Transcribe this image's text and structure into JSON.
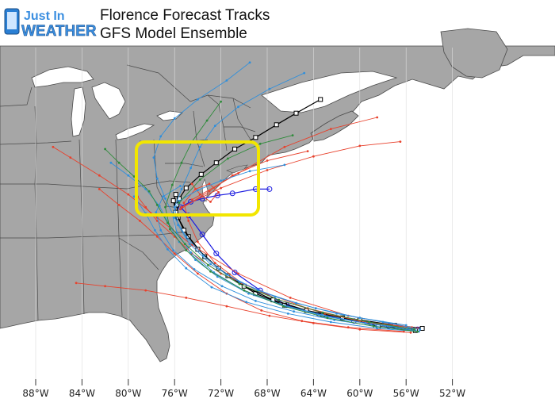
{
  "title": {
    "line1": "Florence Forecast Tracks",
    "line2": "GFS Model Ensemble"
  },
  "logo": {
    "line1": "Just In",
    "line2": "WEATHER"
  },
  "colors": {
    "ocean": "#ffffff",
    "land": "#a6a6a6",
    "border": "#4a4a4a",
    "highlight": "#f2e600",
    "tracks": [
      "#e8412c",
      "#2f8fdc",
      "#2e8b3a",
      "#000000",
      "#1c1ce0"
    ]
  },
  "longitude_labels": [
    "88°W",
    "84°W",
    "80°W",
    "76°W",
    "72°W",
    "68°W",
    "64°W",
    "60°W",
    "56°W",
    "52°W"
  ],
  "map_data": {
    "type": "hurricane-forecast-tracks",
    "storm": "Florence",
    "model": "GFS Model Ensemble",
    "highlight_region": "Mid-Atlantic",
    "tracks": [
      {
        "color": "#1c1ce0",
        "marker": "circle",
        "points": [
          [
            -55.0,
            25.2
          ],
          [
            -57.5,
            25.5
          ],
          [
            -60.5,
            26.0
          ],
          [
            -63.5,
            26.6
          ],
          [
            -66.3,
            27.5
          ],
          [
            -68.6,
            28.9
          ],
          [
            -70.8,
            30.6
          ],
          [
            -72.4,
            32.4
          ],
          [
            -73.6,
            34.2
          ],
          [
            -74.8,
            36.0
          ],
          [
            -75.5,
            36.8
          ],
          [
            -74.6,
            37.3
          ],
          [
            -73.6,
            37.6
          ],
          [
            -72.3,
            37.9
          ],
          [
            -71.0,
            38.1
          ],
          [
            -69.0,
            38.5
          ],
          [
            -67.8,
            38.5
          ]
        ]
      },
      {
        "color": "#000000",
        "marker": "square",
        "points": [
          [
            -54.6,
            25.3
          ],
          [
            -57.0,
            25.6
          ],
          [
            -60.0,
            26.1
          ],
          [
            -63.2,
            26.6
          ],
          [
            -66.5,
            27.5
          ],
          [
            -69.0,
            28.6
          ],
          [
            -71.4,
            30.3
          ],
          [
            -73.4,
            32.1
          ],
          [
            -74.8,
            34.0
          ],
          [
            -75.7,
            35.8
          ],
          [
            -75.8,
            37.0
          ],
          [
            -75.6,
            37.6
          ],
          [
            -75.0,
            38.6
          ],
          [
            -73.7,
            39.9
          ],
          [
            -72.4,
            41.0
          ],
          [
            -70.8,
            42.3
          ],
          [
            -69.0,
            43.4
          ],
          [
            -67.2,
            44.6
          ],
          [
            -65.5,
            45.7
          ],
          [
            -63.4,
            47.0
          ]
        ]
      },
      {
        "color": "#000000",
        "marker": "square",
        "points": [
          [
            -55.2,
            25.1
          ],
          [
            -58.4,
            25.5
          ],
          [
            -61.5,
            26.3
          ],
          [
            -64.6,
            27.0
          ],
          [
            -67.5,
            28.0
          ],
          [
            -70.0,
            29.3
          ],
          [
            -72.2,
            31.0
          ],
          [
            -74.0,
            32.8
          ],
          [
            -75.2,
            34.6
          ],
          [
            -75.9,
            36.3
          ],
          [
            -76.1,
            37.4
          ],
          [
            -75.9,
            38.0
          ]
        ]
      },
      {
        "color": "#e8412c",
        "marker": "dot",
        "points": [
          [
            -55.0,
            25.3
          ],
          [
            -59.0,
            25.8
          ],
          [
            -63.0,
            26.7
          ],
          [
            -67.0,
            28.0
          ],
          [
            -70.2,
            29.6
          ],
          [
            -72.5,
            31.5
          ],
          [
            -74.0,
            33.5
          ],
          [
            -74.8,
            35.5
          ],
          [
            -75.2,
            37.2
          ],
          [
            -74.2,
            38.5
          ],
          [
            -73.0,
            39.0
          ],
          [
            -72.2,
            38.2
          ],
          [
            -72.9,
            37.3
          ],
          [
            -73.8,
            38.0
          ],
          [
            -74.5,
            39.0
          ]
        ]
      },
      {
        "color": "#e8412c",
        "marker": "dot",
        "points": [
          [
            -55.5,
            25.4
          ],
          [
            -60.0,
            26.0
          ],
          [
            -64.5,
            27.2
          ],
          [
            -68.5,
            28.8
          ],
          [
            -72.0,
            30.5
          ],
          [
            -74.5,
            32.4
          ],
          [
            -76.0,
            34.0
          ],
          [
            -77.5,
            35.5
          ],
          [
            -78.5,
            36.8
          ],
          [
            -79.2,
            37.8
          ]
        ]
      },
      {
        "color": "#e8412c",
        "marker": "dot",
        "points": [
          [
            -56.0,
            25.5
          ],
          [
            -61.0,
            26.5
          ],
          [
            -66.0,
            28.2
          ],
          [
            -70.5,
            30.5
          ],
          [
            -74.5,
            33.2
          ],
          [
            -77.5,
            35.8
          ],
          [
            -80.0,
            38.0
          ],
          [
            -82.5,
            39.8
          ],
          [
            -85.0,
            41.5
          ],
          [
            -86.5,
            42.5
          ]
        ]
      },
      {
        "color": "#e8412c",
        "marker": "dot",
        "points": [
          [
            -56.2,
            25.0
          ],
          [
            -61.0,
            25.4
          ],
          [
            -65.0,
            26.0
          ],
          [
            -68.5,
            27.0
          ],
          [
            -71.5,
            28.6
          ],
          [
            -74.0,
            30.5
          ],
          [
            -76.0,
            32.4
          ],
          [
            -77.5,
            34.0
          ],
          [
            -79.0,
            35.5
          ],
          [
            -80.8,
            37.0
          ],
          [
            -82.5,
            38.5
          ]
        ]
      },
      {
        "color": "#e8412c",
        "marker": "dot",
        "points": [
          [
            -55.6,
            24.9
          ],
          [
            -60.0,
            25.2
          ],
          [
            -64.0,
            25.8
          ],
          [
            -67.8,
            26.5
          ],
          [
            -71.5,
            27.4
          ],
          [
            -75.0,
            28.2
          ],
          [
            -78.5,
            28.9
          ],
          [
            -82.0,
            29.3
          ],
          [
            -84.5,
            29.6
          ]
        ]
      },
      {
        "color": "#e8412c",
        "marker": "dot",
        "points": [
          [
            -75.4,
            36.8
          ],
          [
            -72.0,
            38.6
          ],
          [
            -68.0,
            40.3
          ],
          [
            -64.0,
            41.6
          ],
          [
            -60.0,
            42.6
          ],
          [
            -56.5,
            43.0
          ]
        ]
      },
      {
        "color": "#e8412c",
        "marker": "dot",
        "points": [
          [
            -74.5,
            37.5
          ],
          [
            -70.5,
            40.0
          ],
          [
            -66.5,
            42.5
          ],
          [
            -62.5,
            44.2
          ],
          [
            -58.5,
            45.3
          ]
        ]
      },
      {
        "color": "#e8412c",
        "marker": "dot",
        "points": [
          [
            -75.5,
            36.6
          ],
          [
            -73.0,
            38.3
          ],
          [
            -71.0,
            39.8
          ],
          [
            -68.0,
            41.2
          ],
          [
            -64.5,
            42.1
          ]
        ]
      },
      {
        "color": "#2f8fdc",
        "marker": "dot",
        "points": [
          [
            -54.8,
            25.2
          ],
          [
            -58.0,
            25.9
          ],
          [
            -62.0,
            26.7
          ],
          [
            -65.5,
            27.7
          ],
          [
            -68.8,
            28.9
          ],
          [
            -71.5,
            30.4
          ],
          [
            -73.5,
            32.2
          ],
          [
            -75.0,
            34.0
          ],
          [
            -76.0,
            35.8
          ],
          [
            -76.8,
            37.6
          ],
          [
            -77.5,
            39.5
          ],
          [
            -77.8,
            41.5
          ],
          [
            -77.2,
            43.5
          ],
          [
            -76.0,
            45.2
          ],
          [
            -74.0,
            47.0
          ],
          [
            -71.5,
            48.8
          ],
          [
            -69.5,
            50.5
          ]
        ]
      },
      {
        "color": "#2f8fdc",
        "marker": "dot",
        "points": [
          [
            -55.4,
            25.2
          ],
          [
            -59.0,
            25.7
          ],
          [
            -62.8,
            26.4
          ],
          [
            -66.4,
            27.4
          ],
          [
            -69.6,
            28.6
          ],
          [
            -72.3,
            30.2
          ],
          [
            -74.2,
            31.8
          ],
          [
            -75.6,
            33.5
          ],
          [
            -76.5,
            35.2
          ],
          [
            -77.3,
            36.9
          ],
          [
            -78.5,
            38.5
          ],
          [
            -80.0,
            39.8
          ],
          [
            -81.5,
            41.0
          ]
        ]
      },
      {
        "color": "#2f8fdc",
        "marker": "dot",
        "points": [
          [
            -54.9,
            25.0
          ],
          [
            -58.5,
            25.3
          ],
          [
            -62.5,
            25.9
          ],
          [
            -66.2,
            26.7
          ],
          [
            -69.8,
            27.8
          ],
          [
            -72.8,
            29.2
          ],
          [
            -75.0,
            31.0
          ],
          [
            -76.6,
            32.8
          ],
          [
            -77.7,
            34.6
          ],
          [
            -78.5,
            36.2
          ],
          [
            -79.5,
            37.8
          ]
        ]
      },
      {
        "color": "#2f8fdc",
        "marker": "dot",
        "points": [
          [
            -55.8,
            25.3
          ],
          [
            -59.5,
            25.8
          ],
          [
            -63.3,
            26.6
          ],
          [
            -66.9,
            27.6
          ],
          [
            -70.0,
            28.9
          ],
          [
            -72.6,
            30.6
          ],
          [
            -74.6,
            32.5
          ],
          [
            -75.8,
            34.4
          ],
          [
            -76.2,
            36.1
          ],
          [
            -75.6,
            37.4
          ],
          [
            -74.0,
            38.4
          ],
          [
            -72.0,
            39.3
          ],
          [
            -69.5,
            40.2
          ],
          [
            -66.5,
            40.8
          ]
        ]
      },
      {
        "color": "#2f8fdc",
        "marker": "dot",
        "points": [
          [
            -56.0,
            25.6
          ],
          [
            -60.0,
            26.3
          ],
          [
            -63.8,
            27.2
          ],
          [
            -67.3,
            28.3
          ],
          [
            -70.4,
            29.7
          ],
          [
            -72.9,
            31.4
          ],
          [
            -74.7,
            33.3
          ],
          [
            -75.7,
            35.1
          ],
          [
            -76.0,
            36.8
          ],
          [
            -75.4,
            38.5
          ],
          [
            -74.6,
            40.5
          ],
          [
            -73.8,
            42.5
          ],
          [
            -72.5,
            44.5
          ],
          [
            -70.5,
            46.3
          ],
          [
            -67.8,
            48.0
          ],
          [
            -64.8,
            49.5
          ]
        ]
      },
      {
        "color": "#2f8fdc",
        "marker": "dot",
        "points": [
          [
            -55.2,
            25.1
          ],
          [
            -58.6,
            25.5
          ],
          [
            -62.2,
            26.1
          ],
          [
            -65.7,
            26.9
          ],
          [
            -69.0,
            27.9
          ],
          [
            -71.9,
            29.3
          ],
          [
            -74.3,
            30.9
          ],
          [
            -76.1,
            32.7
          ],
          [
            -77.2,
            34.6
          ],
          [
            -77.6,
            36.3
          ],
          [
            -77.0,
            37.8
          ],
          [
            -75.5,
            38.8
          ]
        ]
      },
      {
        "color": "#2e8b3a",
        "marker": "dot",
        "points": [
          [
            -55.3,
            25.2
          ],
          [
            -59.2,
            25.9
          ],
          [
            -63.2,
            26.8
          ],
          [
            -67.0,
            28.0
          ],
          [
            -70.4,
            29.5
          ],
          [
            -73.1,
            31.3
          ],
          [
            -75.1,
            33.3
          ],
          [
            -76.6,
            35.3
          ],
          [
            -77.5,
            37.0
          ],
          [
            -78.2,
            38.3
          ],
          [
            -79.5,
            39.7
          ],
          [
            -80.8,
            41.0
          ],
          [
            -82.0,
            42.3
          ]
        ]
      },
      {
        "color": "#2e8b3a",
        "marker": "dot",
        "points": [
          [
            -55.0,
            25.0
          ],
          [
            -58.8,
            25.5
          ],
          [
            -62.8,
            26.3
          ],
          [
            -66.6,
            27.4
          ],
          [
            -70.0,
            28.9
          ],
          [
            -72.9,
            30.7
          ],
          [
            -75.0,
            32.7
          ],
          [
            -76.4,
            34.7
          ],
          [
            -76.8,
            36.8
          ],
          [
            -76.2,
            38.9
          ],
          [
            -75.4,
            41.0
          ],
          [
            -74.5,
            43.0
          ],
          [
            -73.2,
            45.0
          ],
          [
            -72.0,
            46.8
          ]
        ]
      },
      {
        "color": "#2e8b3a",
        "marker": "dot",
        "points": [
          [
            -75.6,
            37.2
          ],
          [
            -73.8,
            39.4
          ],
          [
            -71.4,
            41.4
          ],
          [
            -68.6,
            42.8
          ],
          [
            -65.8,
            43.6
          ]
        ]
      }
    ]
  }
}
